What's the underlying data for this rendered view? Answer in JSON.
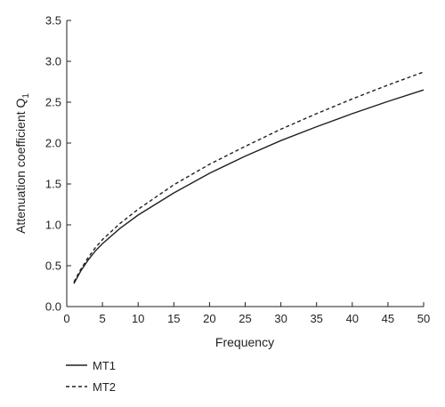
{
  "chart_data": {
    "type": "line",
    "xlabel": "Frequency",
    "ylabel": "Attenuation coefficient Q",
    "ylabel_subscript": "1",
    "xlim": [
      0,
      50
    ],
    "ylim": [
      0,
      3.5
    ],
    "x_ticks": [
      0,
      5,
      10,
      15,
      20,
      25,
      30,
      35,
      40,
      45,
      50
    ],
    "y_ticks": [
      "0.0",
      "0.5",
      "1.0",
      "1.5",
      "2.0",
      "2.5",
      "3.0",
      "3.5"
    ],
    "grid": false,
    "legend_position": "bottom-left",
    "series": [
      {
        "name": "MT1",
        "style": "solid",
        "color": "#231f20",
        "x": [
          1,
          2,
          3,
          4,
          5,
          7.5,
          10,
          15,
          20,
          25,
          30,
          35,
          40,
          45,
          50
        ],
        "y": [
          0.28,
          0.44,
          0.57,
          0.68,
          0.77,
          0.96,
          1.12,
          1.39,
          1.63,
          1.84,
          2.03,
          2.2,
          2.36,
          2.51,
          2.65
        ]
      },
      {
        "name": "MT2",
        "style": "dashed",
        "color": "#231f20",
        "x": [
          1,
          2,
          3,
          4,
          5,
          7.5,
          10,
          15,
          20,
          25,
          30,
          35,
          40,
          45,
          50
        ],
        "y": [
          0.3,
          0.46,
          0.6,
          0.72,
          0.82,
          1.02,
          1.19,
          1.49,
          1.74,
          1.96,
          2.17,
          2.36,
          2.54,
          2.71,
          2.87
        ]
      }
    ]
  }
}
